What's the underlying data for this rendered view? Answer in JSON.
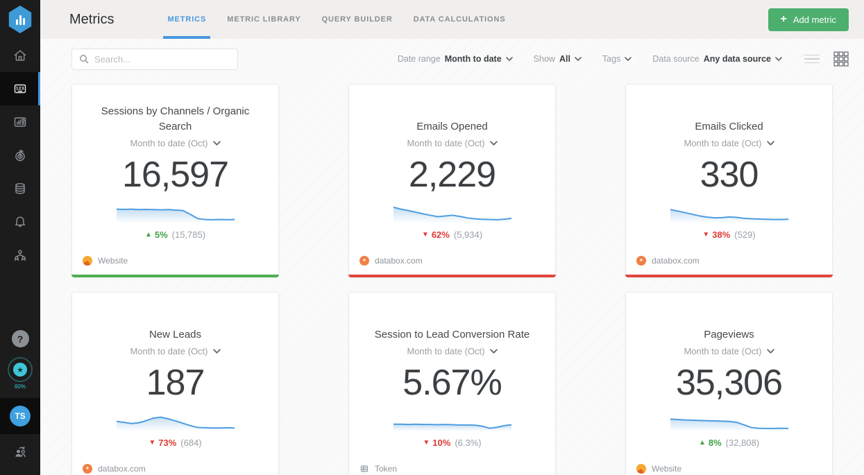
{
  "brand": {
    "logo_icon": "databox-logo-icon"
  },
  "header": {
    "title": "Metrics",
    "tabs": [
      {
        "label": "METRICS",
        "active": true
      },
      {
        "label": "METRIC LIBRARY",
        "active": false
      },
      {
        "label": "QUERY BUILDER",
        "active": false
      },
      {
        "label": "DATA CALCULATIONS",
        "active": false
      }
    ],
    "add_button": {
      "label": "Add metric",
      "plus": "+"
    }
  },
  "filter_bar": {
    "search": {
      "placeholder": "Search..."
    },
    "date_range": {
      "label": "Date range",
      "value": "Month to date"
    },
    "show": {
      "label": "Show",
      "value": "All"
    },
    "tags": {
      "label": "Tags"
    },
    "data_source": {
      "label": "Data source",
      "value": "Any data source"
    },
    "view_active": "grid"
  },
  "sidebar": {
    "items": [
      {
        "name": "home",
        "icon": "home-icon",
        "active": false
      },
      {
        "name": "metrics",
        "icon": "metrics-123-icon",
        "active": true
      },
      {
        "name": "dashboards",
        "icon": "dashboards-icon",
        "active": false
      },
      {
        "name": "goals",
        "icon": "goals-icon",
        "active": false
      },
      {
        "name": "data-sources",
        "icon": "database-icon",
        "active": false
      },
      {
        "name": "notifications",
        "icon": "bell-icon",
        "active": false
      },
      {
        "name": "team",
        "icon": "team-icon",
        "active": false
      }
    ],
    "metrics_icon_text": "123",
    "bottom": {
      "help": "?",
      "progress": {
        "star": "★",
        "value": "60%"
      },
      "avatar_initials": "TS"
    }
  },
  "cards": [
    {
      "title": "Sessions by Channels / Organic Search",
      "period": "Month to date (Oct)",
      "value": "16,597",
      "trend": {
        "arrow": "▲",
        "percent": "5%",
        "previous": "(15,785)",
        "color": "#43a047",
        "direction": "up"
      },
      "source": {
        "icon": "website-icon",
        "label": "Website"
      },
      "accent_color": "#4caf50",
      "sparkline": [
        60,
        59,
        60,
        58,
        59,
        58,
        57,
        58,
        56,
        54,
        38,
        20,
        16,
        15,
        16,
        15,
        16
      ]
    },
    {
      "title": "Emails Opened",
      "period": "Month to date (Oct)",
      "value": "2,229",
      "trend": {
        "arrow": "▼",
        "percent": "62%",
        "previous": "(5,934)",
        "color": "#dc3c34",
        "direction": "down"
      },
      "source": {
        "icon": "hubspot-icon",
        "label": "databox.com"
      },
      "accent_color": "#e2453c",
      "sparkline": [
        68,
        60,
        54,
        47,
        40,
        34,
        28,
        31,
        34,
        29,
        23,
        19,
        17,
        16,
        15,
        17,
        21
      ]
    },
    {
      "title": "Emails Clicked",
      "period": "Month to date (Oct)",
      "value": "330",
      "trend": {
        "arrow": "▼",
        "percent": "38%",
        "previous": "(529)",
        "color": "#dc3c34",
        "direction": "down"
      },
      "source": {
        "icon": "hubspot-icon",
        "label": "databox.com"
      },
      "accent_color": "#e2453c",
      "sparkline": [
        58,
        52,
        45,
        38,
        31,
        26,
        23,
        24,
        27,
        25,
        21,
        19,
        18,
        17,
        16,
        16,
        17
      ]
    },
    {
      "title": "New Leads",
      "period": "Month to date (Oct)",
      "value": "187",
      "trend": {
        "arrow": "▼",
        "percent": "73%",
        "previous": "(684)",
        "color": "#dc3c34",
        "direction": "down"
      },
      "source": {
        "icon": "hubspot-icon",
        "label": "databox.com"
      },
      "accent_color": "",
      "sparkline": [
        42,
        38,
        33,
        36,
        45,
        56,
        60,
        53,
        44,
        34,
        24,
        16,
        15,
        14,
        14,
        15,
        14
      ]
    },
    {
      "title": "Session to Lead Conversion Rate",
      "period": "Month to date (Oct)",
      "value": "5.67%",
      "trend": {
        "arrow": "▼",
        "percent": "10%",
        "previous": "(6.3%)",
        "color": "#dc3c34",
        "direction": "down"
      },
      "source": {
        "icon": "token-icon",
        "label": "Token"
      },
      "accent_color": "",
      "sparkline": [
        30,
        30,
        29,
        30,
        29,
        29,
        28,
        29,
        28,
        27,
        27,
        26,
        22,
        13,
        17,
        24,
        28
      ]
    },
    {
      "title": "Pageviews",
      "period": "Month to date (Oct)",
      "value": "35,306",
      "trend": {
        "arrow": "▲",
        "percent": "8%",
        "previous": "(32,808)",
        "color": "#43a047",
        "direction": "up"
      },
      "source": {
        "icon": "website-icon",
        "label": "Website"
      },
      "accent_color": "",
      "sparkline": [
        52,
        50,
        48,
        47,
        46,
        45,
        44,
        43,
        42,
        38,
        27,
        16,
        13,
        12,
        12,
        13,
        12
      ]
    }
  ],
  "colors": {
    "accent_blue": "#4a97dd",
    "positive": "#43a047",
    "negative": "#dc3c34",
    "sparkline_stroke": "#4d9de0",
    "button_green": "#4caf6e",
    "accent_green_bar": "#4caf50",
    "accent_red_bar": "#e2453c"
  }
}
